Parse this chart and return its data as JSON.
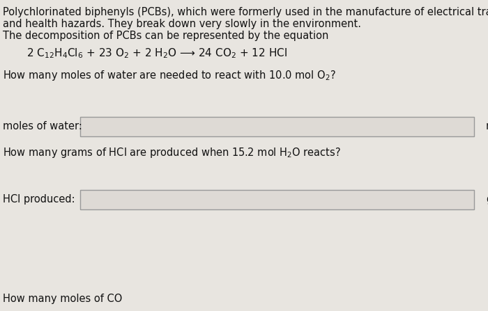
{
  "bg_color": "#e8e5e0",
  "text_color": "#111111",
  "para1_line1": "Polychlorinated biphenyls (PCBs), which were formerly used in the manufacture of electrical transformers, are environmental",
  "para1_line2": "and health hazards. They break down very slowly in the environment.",
  "para2": "The decomposition of PCBs can be represented by the equation",
  "equation": "2 C$_{12}$H$_4$Cl$_6$ + 23 O$_2$ + 2 H$_2$O ⟶ 24 CO$_2$ + 12 HCl",
  "question1": "How many moles of water are needed to react with 10.0 mol O$_2$?",
  "label1": "moles of water:",
  "unit1": "mo",
  "question2": "How many grams of HCl are produced when 15.2 mol H$_2$O reacts?",
  "label2": "HCl produced:",
  "unit2": "g",
  "question3": "How many moles of CO",
  "fontsize_body": 10.5,
  "fontsize_eq": 11,
  "box_color": "#dedad5",
  "box_edge_color": "#999999"
}
